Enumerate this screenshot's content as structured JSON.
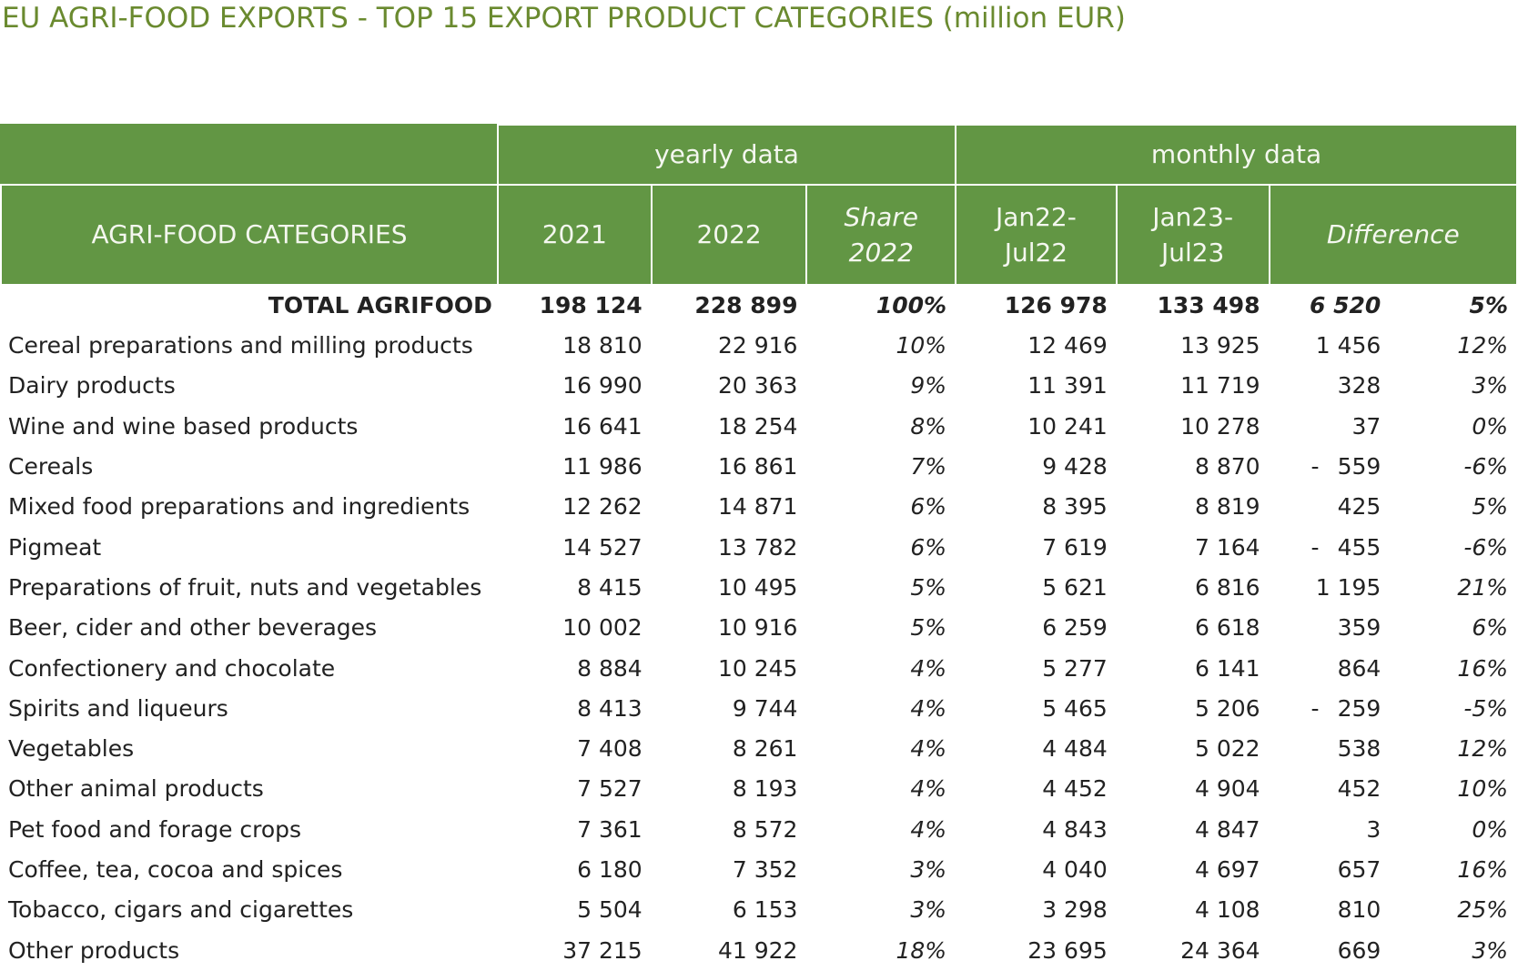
{
  "title": "EU AGRI-FOOD EXPORTS - TOP 15 EXPORT PRODUCT CATEGORIES (million EUR)",
  "header": {
    "group_yearly": "yearly data",
    "group_monthly": "monthly data",
    "col_category": "AGRI-FOOD CATEGORIES",
    "col_2021": "2021",
    "col_2022": "2022",
    "col_share_line1": "Share",
    "col_share_line2": "2022",
    "col_jan22_line1": "Jan22-",
    "col_jan22_line2": "Jul22",
    "col_jan23_line1": "Jan23-",
    "col_jan23_line2": "Jul23",
    "col_difference": "Difference"
  },
  "total": {
    "label": "TOTAL AGRIFOOD",
    "y2021": "198 124",
    "y2022": "228 899",
    "share": "100%",
    "jan22": "126 978",
    "jan23": "133 498",
    "diff_abs": "6 520",
    "diff_pct": "5%"
  },
  "rows": [
    {
      "label": "Cereal preparations and milling products",
      "y2021": "18 810",
      "y2022": "22 916",
      "share": "10%",
      "jan22": "12 469",
      "jan23": "13 925",
      "diff_sign": "",
      "diff_abs": "1 456",
      "diff_pct": "12%"
    },
    {
      "label": "Dairy products",
      "y2021": "16 990",
      "y2022": "20 363",
      "share": "9%",
      "jan22": "11 391",
      "jan23": "11 719",
      "diff_sign": "",
      "diff_abs": "328",
      "diff_pct": "3%"
    },
    {
      "label": "Wine and wine based products",
      "y2021": "16 641",
      "y2022": "18 254",
      "share": "8%",
      "jan22": "10 241",
      "jan23": "10 278",
      "diff_sign": "",
      "diff_abs": "37",
      "diff_pct": "0%"
    },
    {
      "label": "Cereals",
      "y2021": "11 986",
      "y2022": "16 861",
      "share": "7%",
      "jan22": "9 428",
      "jan23": "8 870",
      "diff_sign": "-",
      "diff_abs": "559",
      "diff_pct": "-6%"
    },
    {
      "label": "Mixed food preparations and ingredients",
      "y2021": "12 262",
      "y2022": "14 871",
      "share": "6%",
      "jan22": "8 395",
      "jan23": "8 819",
      "diff_sign": "",
      "diff_abs": "425",
      "diff_pct": "5%"
    },
    {
      "label": "Pigmeat",
      "y2021": "14 527",
      "y2022": "13 782",
      "share": "6%",
      "jan22": "7 619",
      "jan23": "7 164",
      "diff_sign": "-",
      "diff_abs": "455",
      "diff_pct": "-6%"
    },
    {
      "label": "Preparations of fruit, nuts and vegetables",
      "y2021": "8 415",
      "y2022": "10 495",
      "share": "5%",
      "jan22": "5 621",
      "jan23": "6 816",
      "diff_sign": "",
      "diff_abs": "1 195",
      "diff_pct": "21%"
    },
    {
      "label": "Beer, cider and other beverages",
      "y2021": "10 002",
      "y2022": "10 916",
      "share": "5%",
      "jan22": "6 259",
      "jan23": "6 618",
      "diff_sign": "",
      "diff_abs": "359",
      "diff_pct": "6%"
    },
    {
      "label": "Confectionery and chocolate",
      "y2021": "8 884",
      "y2022": "10 245",
      "share": "4%",
      "jan22": "5 277",
      "jan23": "6 141",
      "diff_sign": "",
      "diff_abs": "864",
      "diff_pct": "16%"
    },
    {
      "label": "Spirits and liqueurs",
      "y2021": "8 413",
      "y2022": "9 744",
      "share": "4%",
      "jan22": "5 465",
      "jan23": "5 206",
      "diff_sign": "-",
      "diff_abs": "259",
      "diff_pct": "-5%"
    },
    {
      "label": "Vegetables",
      "y2021": "7 408",
      "y2022": "8 261",
      "share": "4%",
      "jan22": "4 484",
      "jan23": "5 022",
      "diff_sign": "",
      "diff_abs": "538",
      "diff_pct": "12%"
    },
    {
      "label": "Other animal products",
      "y2021": "7 527",
      "y2022": "8 193",
      "share": "4%",
      "jan22": "4 452",
      "jan23": "4 904",
      "diff_sign": "",
      "diff_abs": "452",
      "diff_pct": "10%"
    },
    {
      "label": "Pet food and forage crops",
      "y2021": "7 361",
      "y2022": "8 572",
      "share": "4%",
      "jan22": "4 843",
      "jan23": "4 847",
      "diff_sign": "",
      "diff_abs": "3",
      "diff_pct": "0%"
    },
    {
      "label": "Coffee, tea, cocoa and spices",
      "y2021": "6 180",
      "y2022": "7 352",
      "share": "3%",
      "jan22": "4 040",
      "jan23": "4 697",
      "diff_sign": "",
      "diff_abs": "657",
      "diff_pct": "16%"
    },
    {
      "label": "Tobacco, cigars and cigarettes",
      "y2021": "5 504",
      "y2022": "6 153",
      "share": "3%",
      "jan22": "3 298",
      "jan23": "4 108",
      "diff_sign": "",
      "diff_abs": "810",
      "diff_pct": "25%"
    },
    {
      "label": "Other products",
      "y2021": "37 215",
      "y2022": "41 922",
      "share": "18%",
      "jan22": "23 695",
      "jan23": "24 364",
      "diff_sign": "",
      "diff_abs": "669",
      "diff_pct": "3%"
    }
  ],
  "colors": {
    "header_bg": "#629644",
    "title_text": "#6a8a2f"
  }
}
